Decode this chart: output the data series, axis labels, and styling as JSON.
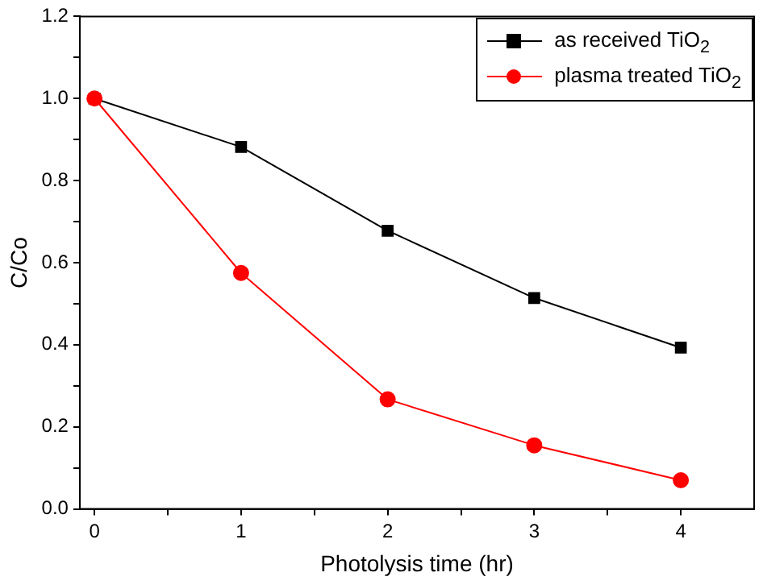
{
  "chart_data": {
    "type": "line",
    "xlabel": "Photolysis time (hr)",
    "ylabel": "C/Co",
    "x": [
      0,
      1,
      2,
      3,
      4
    ],
    "series": [
      {
        "name": "as received TiO$_{2}$",
        "color": "#000000",
        "marker": "square",
        "values": [
          1.0,
          0.882,
          0.678,
          0.514,
          0.393
        ]
      },
      {
        "name": "plasma treated TiO$_{2}$",
        "color": "#ff0000",
        "marker": "circle",
        "values": [
          1.0,
          0.575,
          0.267,
          0.155,
          0.07
        ]
      }
    ],
    "xlim": [
      -0.1,
      4.5
    ],
    "xticks": [
      0,
      {
        "value": 0.5,
        "label": null
      },
      1,
      {
        "value": 1.5,
        "label": null
      },
      2,
      {
        "value": 2.5,
        "label": null
      },
      3,
      {
        "value": 3.5,
        "label": null
      },
      4
    ],
    "ylim": [
      0,
      1.2
    ],
    "yticks": [
      "0.0",
      {
        "value": 0.1,
        "label": null
      },
      {
        "value": 0.2,
        "label": "0.2"
      },
      {
        "value": 0.3,
        "label": null
      },
      {
        "value": 0.4,
        "label": "0.4"
      },
      {
        "value": 0.5,
        "label": null
      },
      {
        "value": 0.6,
        "label": "0.6"
      },
      {
        "value": 0.7,
        "label": null
      },
      {
        "value": 0.8,
        "label": "0.8"
      },
      {
        "value": 0.9,
        "label": null
      },
      {
        "value": 1.0,
        "label": "1.0"
      },
      {
        "value": 1.1,
        "label": null
      },
      {
        "value": 1.2,
        "label": "1.2"
      }
    ],
    "grid": false,
    "legend": "top right",
    "line_style": "solid"
  }
}
